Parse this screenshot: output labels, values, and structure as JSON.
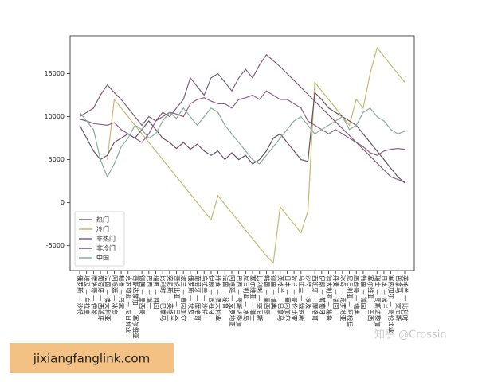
{
  "chart_data": {
    "type": "line",
    "categories": [
      "俄罗斯 — 沙特",
      "埃及 — 乌拉圭",
      "摩洛哥 — 伊朗",
      "葡萄牙 — 西班牙",
      "法国 — 澳大利亚",
      "阿根廷 — 冰岛",
      "秘鲁 — 丹麦",
      "克罗地亚 — 尼日利亚",
      "哥斯达黎加 — 塞尔维亚",
      "德国 — 墨西哥",
      "巴西 — 瑞士",
      "瑞典 — 韩国",
      "比利时 — 巴拿马",
      "突尼斯 — 英格兰",
      "哥伦比亚 — 日本",
      "波兰 — 塞内加尔",
      "俄罗斯 — 埃及",
      "葡萄牙 — 摩洛哥",
      "乌拉圭 — 沙特",
      "伊朗 — 西班牙",
      "丹麦 — 澳大利亚",
      "法国 — 秘鲁",
      "阿根廷 — 克罗地亚",
      "巴西 — 哥斯达黎加",
      "尼日利亚 — 冰岛",
      "塞尔维亚 — 瑞士",
      "比利时 — 突尼斯",
      "韩国 — 墨西哥",
      "德国 — 瑞典",
      "英格兰 — 巴拿马",
      "日本 — 塞内加尔",
      "波兰 — 哥伦比亚",
      "乌拉圭 — 俄罗斯",
      "沙特 — 埃及",
      "西班牙 — 摩洛哥",
      "伊朗 — 葡萄牙",
      "澳大利亚 — 秘鲁",
      "丹麦 — 法国",
      "冰岛 — 克罗地亚",
      "尼日利亚 — 阿根廷",
      "墨西哥 — 瑞典",
      "韩国 — 德国",
      "塞尔维亚 — 巴西",
      "瑞士 — 哥斯达黎加",
      "日本 — 波兰",
      "塞内加尔 — 哥伦比亚",
      "巴拿马 — 突尼斯",
      "英格兰 — 比利时"
    ],
    "series": [
      {
        "name": "热门",
        "color": "#7e5f74",
        "values": [
          10000,
          10500,
          11000,
          12500,
          13700,
          12800,
          12000,
          11000,
          10000,
          9000,
          10000,
          9500,
          10500,
          10000,
          11000,
          12000,
          14500,
          13500,
          12500,
          14500,
          15000,
          14000,
          13000,
          14500,
          15500,
          14500,
          16000,
          17200,
          16500,
          15800,
          15000,
          14200,
          13400,
          12600,
          11800,
          11000,
          10200,
          9400,
          8600,
          7800,
          7000,
          6200,
          5400,
          4600,
          3800,
          3000,
          2700,
          2400
        ]
      },
      {
        "name": "冷门",
        "color": "#c2ba72",
        "values": [
          null,
          null,
          null,
          null,
          5000,
          12000,
          11000,
          10000,
          9000,
          8000,
          7000,
          6000,
          5000,
          4000,
          3000,
          2000,
          1000,
          0,
          -1000,
          -2000,
          800,
          -200,
          -1200,
          -2200,
          -3200,
          -4200,
          -5200,
          -6200,
          -7000,
          -500,
          -1500,
          -2500,
          -3500,
          -1000,
          14000,
          13000,
          12000,
          11000,
          10000,
          9000,
          12000,
          11000,
          15000,
          18000,
          17000,
          16000,
          15000,
          14000
        ]
      },
      {
        "name": "非热门",
        "color": "#8d5f86",
        "values": [
          9700,
          9500,
          9200,
          9100,
          9000,
          9300,
          8500,
          8000,
          7500,
          7000,
          8000,
          9500,
          10000,
          10500,
          10300,
          10000,
          11500,
          12000,
          12200,
          11800,
          11500,
          11500,
          11000,
          12000,
          12200,
          12500,
          12000,
          13000,
          12500,
          12000,
          12000,
          11500,
          11000,
          9500,
          9000,
          8500,
          8000,
          8500,
          8000,
          7500,
          7000,
          6500,
          5800,
          5500,
          6000,
          6200,
          6300,
          6200
        ]
      },
      {
        "name": "非冷门",
        "color": "#6b5064",
        "values": [
          9000,
          7500,
          6000,
          5000,
          5500,
          7000,
          7500,
          8000,
          7500,
          8500,
          9500,
          8500,
          7500,
          7000,
          6300,
          7000,
          6200,
          6800,
          6000,
          5500,
          6000,
          5000,
          5800,
          5000,
          5500,
          4500,
          5000,
          6000,
          7500,
          8000,
          7000,
          6000,
          5000,
          4800,
          12800,
          12000,
          11000,
          10500,
          10000,
          9500,
          9000,
          8000,
          7000,
          6000,
          5000,
          4000,
          3000,
          2300
        ]
      },
      {
        "name": "中国",
        "color": "#86ad9b",
        "values": [
          10500,
          9500,
          8500,
          5000,
          3000,
          4500,
          6500,
          7500,
          9000,
          8500,
          7500,
          8000,
          9500,
          10500,
          9800,
          11000,
          10000,
          9000,
          10000,
          11000,
          10500,
          9000,
          8000,
          7000,
          6000,
          5000,
          4500,
          5500,
          6500,
          7500,
          8500,
          9500,
          10000,
          9000,
          8000,
          8500,
          9000,
          9500,
          10000,
          8500,
          9000,
          10500,
          11000,
          10000,
          9500,
          8500,
          8000,
          8300
        ]
      }
    ],
    "ylim": [
      -7900,
      19400
    ],
    "yticks": [
      -5000,
      0,
      5000,
      10000,
      15000
    ],
    "grid": false,
    "legend": "lower-left"
  },
  "watermarks": {
    "site": "jixiangfanglink.com",
    "author": "知乎 @Crossin"
  }
}
